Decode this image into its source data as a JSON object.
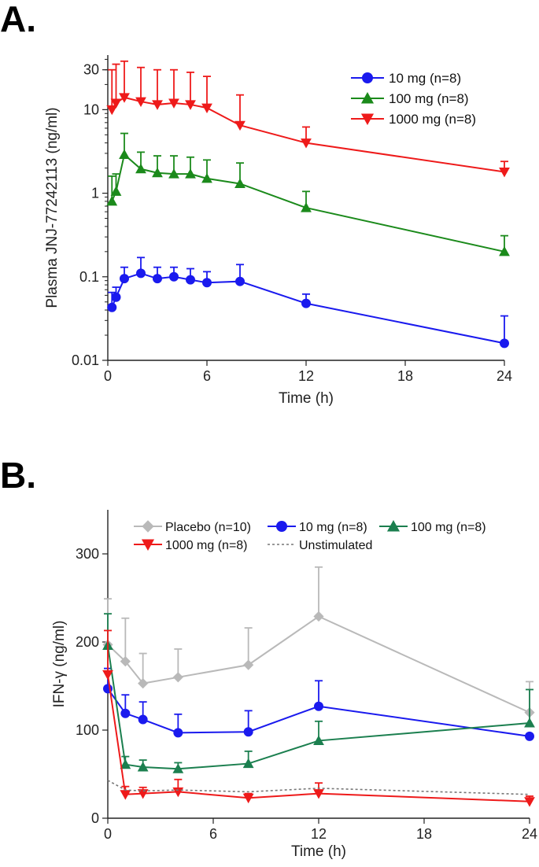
{
  "panels": {
    "a_letter": "A.",
    "b_letter": "B."
  },
  "chart_data": [
    {
      "type": "line",
      "yscale": "log",
      "title": "",
      "xlabel": "Time (h)",
      "ylabel": "Plasma JNJ-77242113 (ng/ml)",
      "xlim": [
        0,
        24
      ],
      "ylim": [
        0.01,
        45
      ],
      "xticks": [
        "0",
        "6",
        "12",
        "18",
        "24"
      ],
      "yticks": [
        "0.01",
        "0.1",
        "1",
        "10",
        "30"
      ],
      "ytick_values": [
        0.01,
        0.1,
        1,
        10,
        30
      ],
      "legend_position": "top-right",
      "series": [
        {
          "name": "10 mg (n=8)",
          "color": "#1a1aee",
          "marker": "circle",
          "x": [
            0.25,
            0.5,
            1,
            2,
            3,
            4,
            5,
            6,
            8,
            12,
            24
          ],
          "values": [
            0.043,
            0.057,
            0.095,
            0.11,
            0.095,
            0.1,
            0.092,
            0.085,
            0.088,
            0.048,
            0.016
          ],
          "error_upper": [
            0.065,
            0.075,
            0.13,
            0.17,
            0.13,
            0.13,
            0.125,
            0.115,
            0.14,
            0.062,
            0.034
          ]
        },
        {
          "name": "100 mg (n=8)",
          "color": "#1b8a1b",
          "marker": "triangle-up",
          "x": [
            0.25,
            0.5,
            1,
            2,
            3,
            4,
            5,
            6,
            8,
            12,
            24
          ],
          "values": [
            0.8,
            1.05,
            2.9,
            1.95,
            1.75,
            1.7,
            1.7,
            1.5,
            1.3,
            0.67,
            0.2
          ],
          "error_upper": [
            1.6,
            1.7,
            5.2,
            3.1,
            2.8,
            2.8,
            2.7,
            2.5,
            2.3,
            1.05,
            0.31
          ]
        },
        {
          "name": "1000 mg (n=8)",
          "color": "#ee1a1a",
          "marker": "triangle-down",
          "x": [
            0.25,
            0.5,
            1,
            2,
            3,
            4,
            5,
            6,
            8,
            12,
            24
          ],
          "values": [
            10,
            12,
            14,
            12.5,
            11.5,
            12,
            11.5,
            10.5,
            6.5,
            4,
            1.8
          ],
          "error_upper": [
            30,
            35,
            38,
            32,
            30,
            30,
            28,
            25,
            15,
            6.2,
            2.4
          ]
        }
      ]
    },
    {
      "type": "line",
      "title": "",
      "xlabel": "Time (h)",
      "ylabel": "IFN-γ (ng/ml)",
      "xlim": [
        0,
        24
      ],
      "ylim": [
        0,
        350
      ],
      "xticks": [
        "0",
        "6",
        "12",
        "18",
        "24"
      ],
      "yticks": [
        "0",
        "100",
        "200",
        "300"
      ],
      "ytick_values": [
        0,
        100,
        200,
        300
      ],
      "legend_position": "top",
      "series": [
        {
          "name": "Placebo (n=10)",
          "color": "#b9b9b9",
          "marker": "diamond",
          "x": [
            0,
            1,
            2,
            4,
            8,
            12,
            24
          ],
          "values": [
            197,
            178,
            153,
            160,
            174,
            229,
            120
          ],
          "error_upper": [
            249,
            227,
            187,
            192,
            216,
            285,
            155
          ]
        },
        {
          "name": "10 mg (n=8)",
          "color": "#1a1aee",
          "marker": "circle",
          "x": [
            0,
            1,
            2,
            4,
            8,
            12,
            24
          ],
          "values": [
            147,
            119,
            112,
            97,
            98,
            127,
            93
          ],
          "error_upper": [
            170,
            140,
            132,
            118,
            122,
            156,
            null
          ]
        },
        {
          "name": "100 mg (n=8)",
          "color": "#1b7f4f",
          "marker": "triangle-up",
          "x": [
            0,
            1,
            2,
            4,
            8,
            12,
            24
          ],
          "values": [
            196,
            61,
            58,
            56,
            62,
            88,
            108
          ],
          "error_upper": [
            232,
            70,
            66,
            63,
            76,
            110,
            146
          ]
        },
        {
          "name": "1000 mg (n=8)",
          "color": "#ee1a1a",
          "marker": "triangle-down",
          "x": [
            0,
            1,
            2,
            4,
            8,
            12,
            24
          ],
          "values": [
            163,
            27,
            28,
            30,
            23,
            28,
            19
          ],
          "error_upper": [
            213,
            36,
            35,
            44,
            28,
            40,
            25
          ]
        },
        {
          "name": "Unstimulated",
          "color": "#777777",
          "marker": "none",
          "dashed": true,
          "x": [
            0,
            1,
            2,
            4,
            8,
            12,
            24
          ],
          "values": [
            43,
            32,
            31,
            32,
            30,
            34,
            27
          ]
        }
      ]
    }
  ]
}
